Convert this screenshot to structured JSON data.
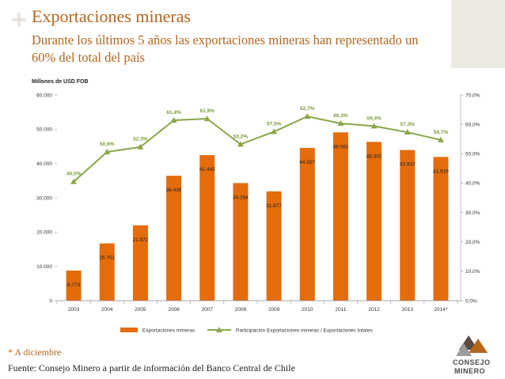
{
  "slide": {
    "title": "Exportaciones mineras",
    "subtitle": "Durante los últimos 5 años las exportaciones mineras han representado un 60% del total del país",
    "footnote": "* A diciembre",
    "source": "Fuente: Consejo Minero a partir de información del Banco Central de Chile",
    "logo_line1": "CONSEJO",
    "logo_line2": "MINERO",
    "plus_symbol": "+"
  },
  "colors": {
    "accent": "#b5651d",
    "bar": "#e46c0a",
    "line": "#8aa64a",
    "marker": "#8aa64a"
  },
  "chart_data": {
    "type": "bar",
    "units_label": "Millones de USD FOB",
    "categories": [
      "2003",
      "2004",
      "2005",
      "2006",
      "2007",
      "2008",
      "2009",
      "2010",
      "2011",
      "2012",
      "2013",
      "2014*"
    ],
    "series": [
      {
        "name": "Exportaciones mineras",
        "type": "bar",
        "axis": "left",
        "values": [
          8773,
          16701,
          21972,
          36438,
          42445,
          34294,
          31877,
          44557,
          49083,
          46302,
          43937,
          41919
        ],
        "labels": [
          "8.773",
          "16.701",
          "21.972",
          "36.438",
          "42.445",
          "34.294",
          "31.877",
          "44.557",
          "49.083",
          "46.302",
          "43.937",
          "41.919"
        ]
      },
      {
        "name": "Participación Exportaciones mineras / Exportaciones totales",
        "type": "line",
        "axis": "right",
        "values": [
          40.5,
          50.6,
          52.3,
          61.4,
          61.9,
          53.2,
          57.5,
          62.7,
          60.3,
          59.4,
          57.3,
          54.7
        ],
        "labels": [
          "40,5%",
          "50,6%",
          "52,3%",
          "61,4%",
          "61,9%",
          "53,2%",
          "57,5%",
          "62,7%",
          "60,3%",
          "59,4%",
          "57,3%",
          "54,7%"
        ]
      }
    ],
    "left_axis": {
      "ylim": [
        0,
        60000
      ],
      "ticks": [
        0,
        10000,
        20000,
        30000,
        40000,
        50000,
        60000
      ],
      "tick_labels": [
        "0",
        "10.000",
        "20.000",
        "30.000",
        "40.000",
        "50.000",
        "60.000"
      ]
    },
    "right_axis": {
      "ylim": [
        0,
        70
      ],
      "ticks": [
        0,
        10,
        20,
        30,
        40,
        50,
        60,
        70
      ],
      "tick_labels": [
        "0,0%",
        "10,0%",
        "20,0%",
        "30,0%",
        "40,0%",
        "50,0%",
        "60,0%",
        "70,0%"
      ]
    },
    "grid": false,
    "legend_position": "bottom"
  }
}
